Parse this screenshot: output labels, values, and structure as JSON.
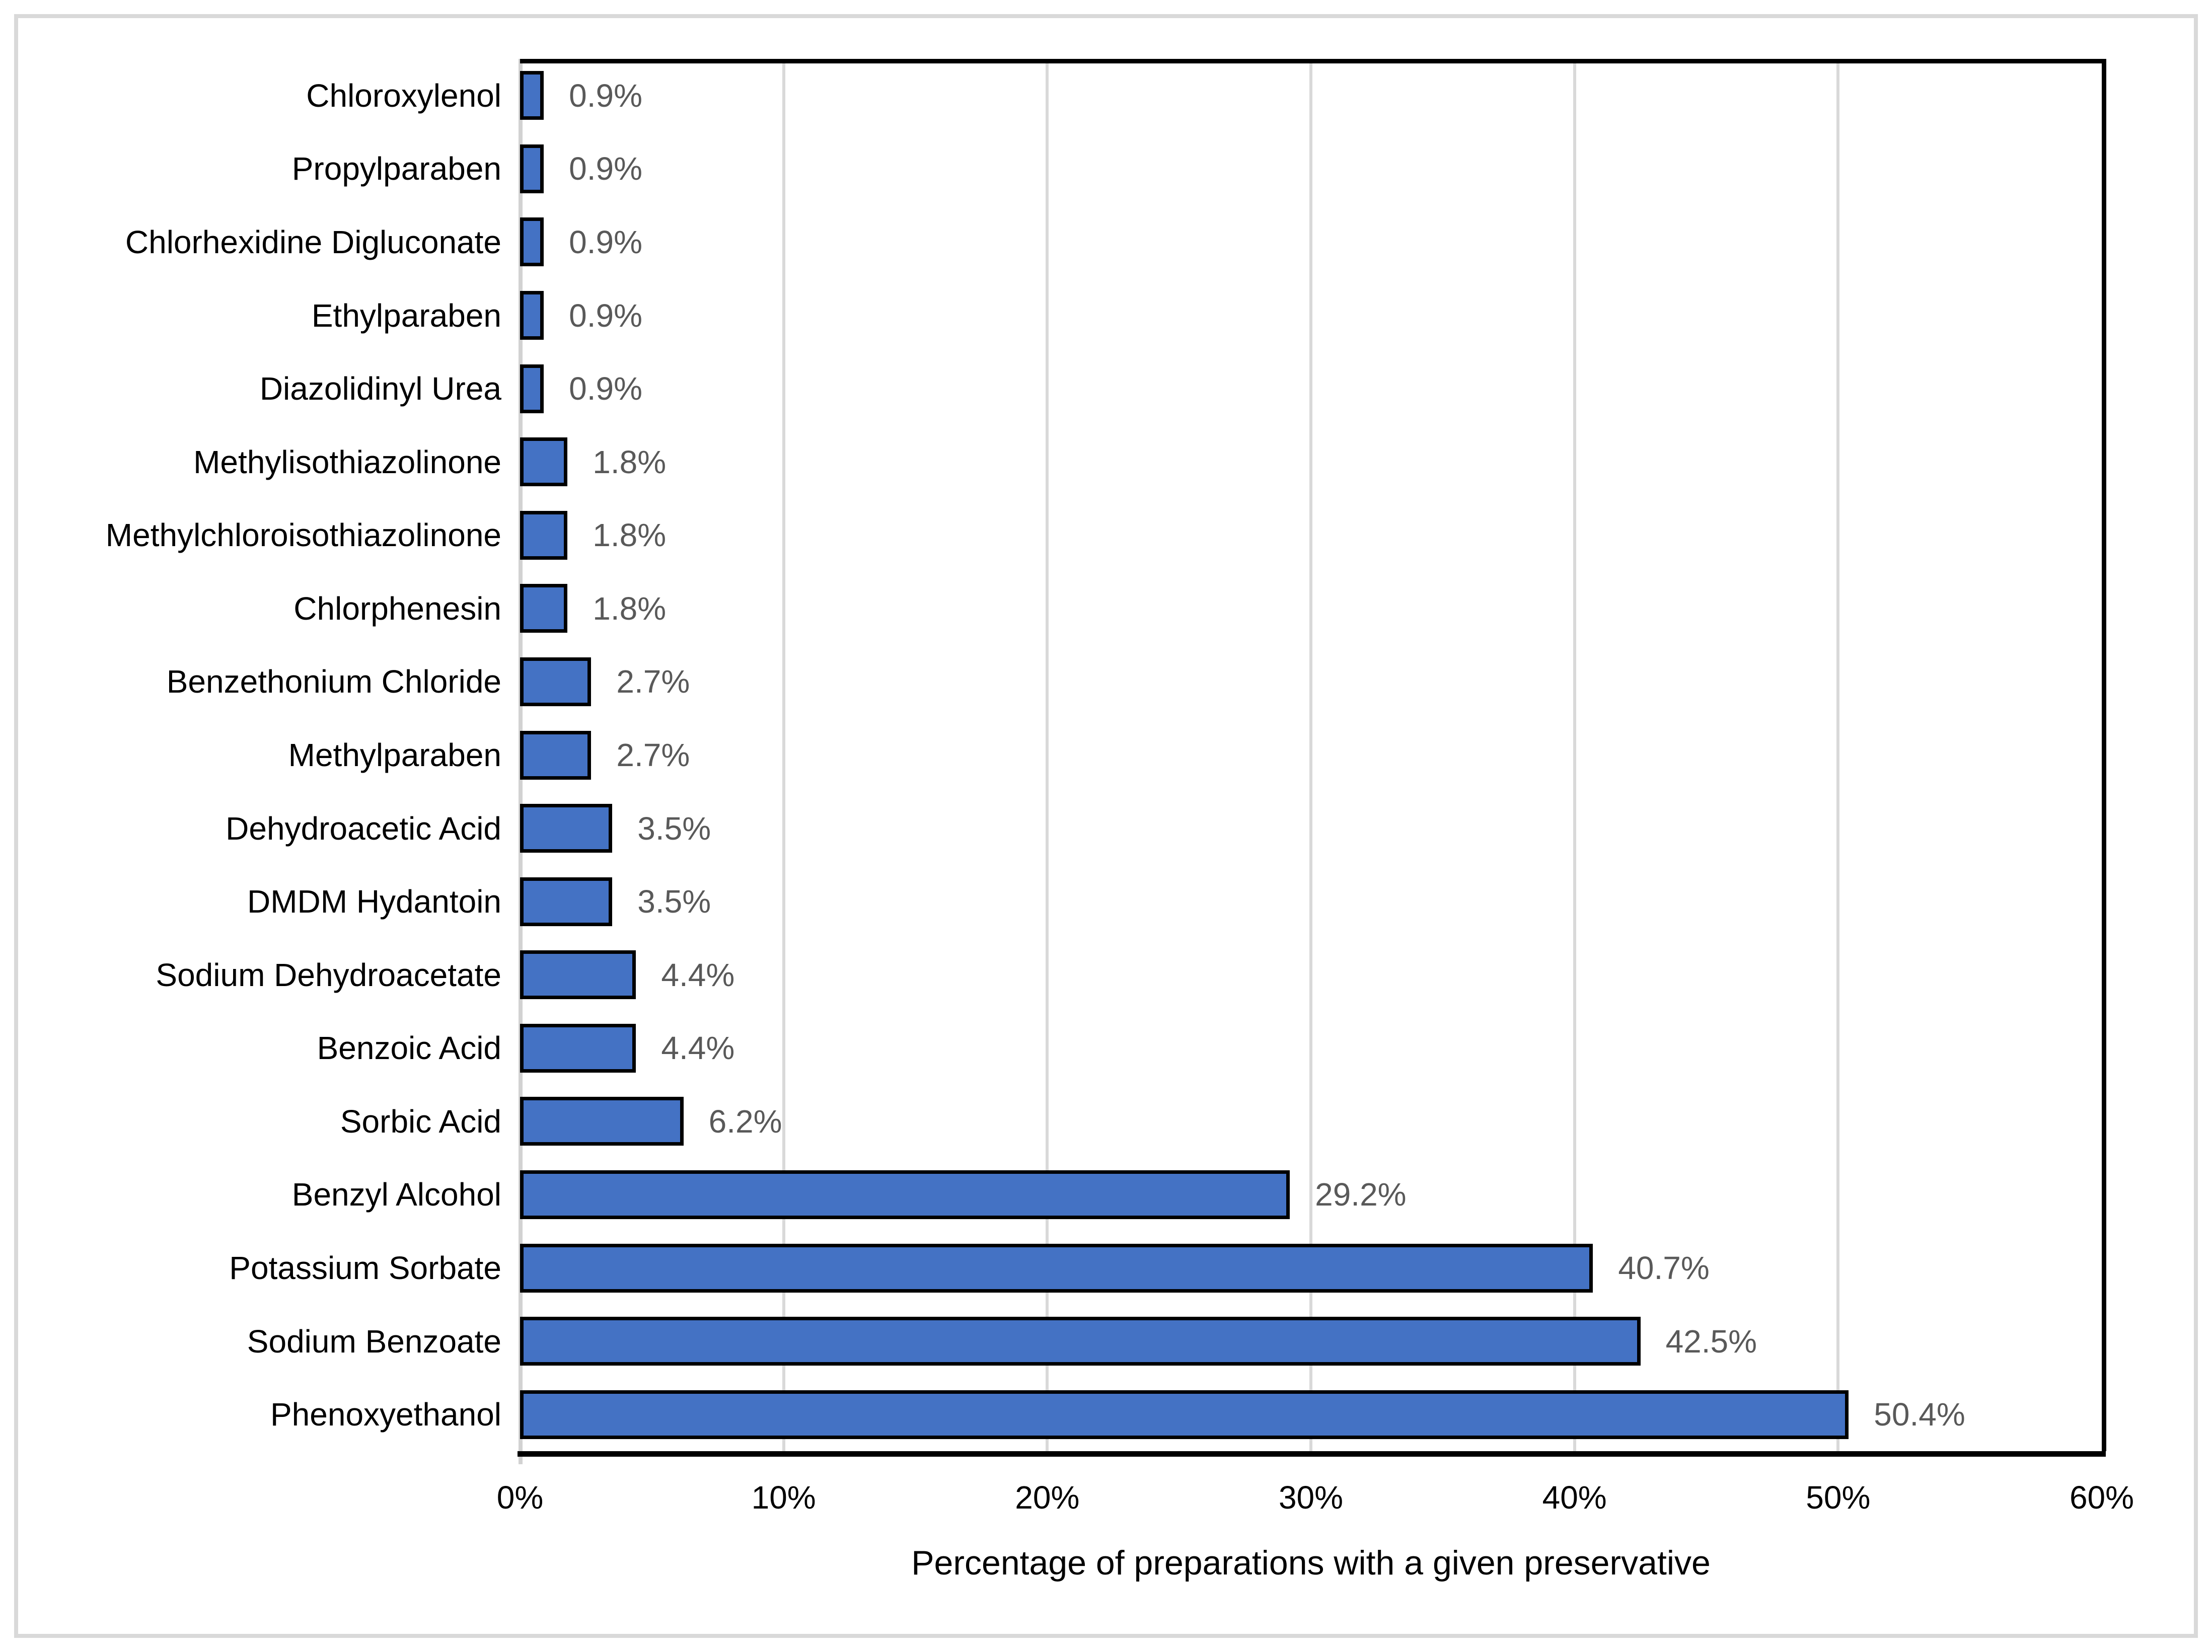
{
  "chart_data": {
    "type": "bar",
    "orientation": "horizontal",
    "title": "",
    "xlabel": "Percentage of preparations with a given preservative",
    "ylabel": "",
    "categories": [
      "Chloroxylenol",
      "Propylparaben",
      "Chlorhexidine Digluconate",
      "Ethylparaben",
      "Diazolidinyl Urea",
      "Methylisothiazolinone",
      "Methylchloroisothiazolinone",
      "Chlorphenesin",
      "Benzethonium Chloride",
      "Methylparaben",
      "Dehydroacetic Acid",
      "DMDM Hydantoin",
      "Sodium Dehydroacetate",
      "Benzoic Acid",
      "Sorbic Acid",
      "Benzyl Alcohol",
      "Potassium Sorbate",
      "Sodium Benzoate",
      "Phenoxyethanol"
    ],
    "values": [
      0.9,
      0.9,
      0.9,
      0.9,
      0.9,
      1.8,
      1.8,
      1.8,
      2.7,
      2.7,
      3.5,
      3.5,
      4.4,
      4.4,
      6.2,
      29.2,
      40.7,
      42.5,
      50.4
    ],
    "value_labels": [
      "0.9%",
      "0.9%",
      "0.9%",
      "0.9%",
      "0.9%",
      "1.8%",
      "1.8%",
      "1.8%",
      "2.7%",
      "2.7%",
      "3.5%",
      "3.5%",
      "4.4%",
      "4.4%",
      "6.2%",
      "29.2%",
      "40.7%",
      "42.5%",
      "50.4%"
    ],
    "x_ticks": [
      {
        "value": 0,
        "label": "0%"
      },
      {
        "value": 10,
        "label": "10%"
      },
      {
        "value": 20,
        "label": "20%"
      },
      {
        "value": 30,
        "label": "30%"
      },
      {
        "value": 40,
        "label": "40%"
      },
      {
        "value": 50,
        "label": "50%"
      },
      {
        "value": 60,
        "label": "60%"
      }
    ],
    "xlim": [
      0,
      60
    ],
    "grid": true,
    "legend": false,
    "colors": {
      "bar_fill": "#4472c4",
      "bar_border": "#000000",
      "value_label": "#595959",
      "category_label": "#000000",
      "tick_label": "#000000",
      "gridline": "#d9d9d9",
      "axis_line": "#000000",
      "value_axis_line": "#d2d2d2",
      "figure_border": "#d9d9d9",
      "background": "#ffffff"
    }
  }
}
